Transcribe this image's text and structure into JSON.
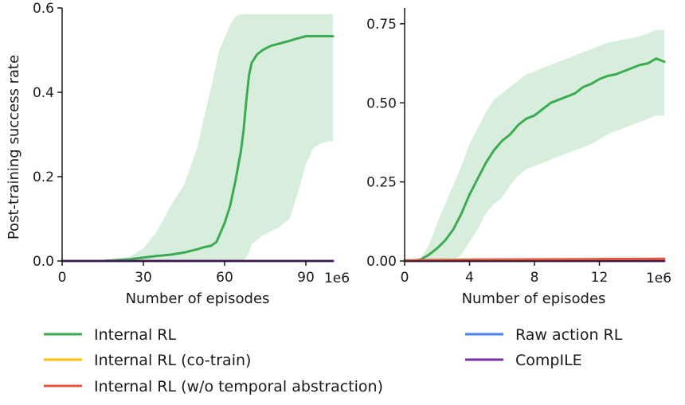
{
  "legend": {
    "items": [
      {
        "label": "Internal RL",
        "color": "#3cab52"
      },
      {
        "label": "Internal RL (co-train)",
        "color": "#ffc107"
      },
      {
        "label": "Internal RL (w/o temporal abstraction)",
        "color": "#e8553e"
      },
      {
        "label": "Raw action RL",
        "color": "#4a86f0"
      },
      {
        "label": "CompILE",
        "color": "#7b2fa6"
      }
    ]
  },
  "chart_data": [
    {
      "type": "line",
      "title": "",
      "xlabel": "Number of episodes",
      "ylabel": "Post-training success rate",
      "x_offset_label": "1e6",
      "xlim": [
        0,
        1.0
      ],
      "ylim": [
        0,
        0.6
      ],
      "xticks": [
        0,
        0.3,
        0.6,
        0.9
      ],
      "xtick_labels": [
        "0",
        "30",
        "60",
        "90"
      ],
      "yticks": [
        0,
        0.2,
        0.4,
        0.6
      ],
      "ytick_labels": [
        "0.0",
        "0.2",
        "0.4",
        "0.6"
      ],
      "grid": false,
      "series": [
        {
          "name": "Internal RL",
          "color": "#3cab52",
          "x": [
            0,
            0.15,
            0.2,
            0.25,
            0.3,
            0.35,
            0.4,
            0.45,
            0.5,
            0.52,
            0.55,
            0.57,
            0.58,
            0.6,
            0.62,
            0.64,
            0.66,
            0.67,
            0.68,
            0.69,
            0.7,
            0.72,
            0.74,
            0.77,
            0.8,
            0.84,
            0.87,
            0.9,
            0.93,
            0.96,
            1.0
          ],
          "values": [
            0,
            0,
            0.002,
            0.004,
            0.008,
            0.012,
            0.015,
            0.02,
            0.028,
            0.032,
            0.036,
            0.045,
            0.06,
            0.09,
            0.13,
            0.19,
            0.26,
            0.31,
            0.38,
            0.44,
            0.47,
            0.49,
            0.5,
            0.51,
            0.515,
            0.522,
            0.528,
            0.533,
            0.533,
            0.533,
            0.533
          ],
          "upper": [
            0,
            0,
            0.004,
            0.01,
            0.03,
            0.07,
            0.13,
            0.18,
            0.27,
            0.33,
            0.41,
            0.47,
            0.5,
            0.53,
            0.56,
            0.58,
            0.585,
            0.585,
            0.585,
            0.585,
            0.585,
            0.585,
            0.585,
            0.585,
            0.585,
            0.585,
            0.585,
            0.585,
            0.585,
            0.585,
            0.585
          ],
          "lower": [
            0,
            0,
            0,
            0,
            0,
            0,
            0,
            0,
            0,
            0,
            0,
            0,
            0,
            0,
            0,
            0,
            0,
            0,
            0.01,
            0.02,
            0.04,
            0.05,
            0.06,
            0.07,
            0.08,
            0.1,
            0.16,
            0.23,
            0.27,
            0.28,
            0.285
          ]
        },
        {
          "name": "Internal RL (co-train)",
          "color": "#ffc107",
          "x": [
            0,
            1.0
          ],
          "values": [
            0,
            0
          ]
        },
        {
          "name": "Internal RL (w/o temporal abstraction)",
          "color": "#e8553e",
          "x": [
            0,
            1.0
          ],
          "values": [
            0,
            0
          ]
        },
        {
          "name": "Raw action RL",
          "color": "#4a86f0",
          "x": [
            0,
            1.0
          ],
          "values": [
            0,
            0
          ]
        },
        {
          "name": "CompILE",
          "color": "#7b2fa6",
          "x": [
            0,
            1.0
          ],
          "values": [
            0,
            0
          ]
        }
      ]
    },
    {
      "type": "line",
      "title": "",
      "xlabel": "Number of episodes",
      "ylabel": "",
      "x_offset_label": "1e6",
      "xlim": [
        0,
        16
      ],
      "ylim": [
        0,
        0.8
      ],
      "xticks": [
        0,
        4,
        8,
        12
      ],
      "xtick_labels": [
        "0",
        "4",
        "8",
        "12"
      ],
      "yticks": [
        0,
        0.25,
        0.5,
        0.75
      ],
      "ytick_labels": [
        "0.00",
        "0.25",
        "0.50",
        "0.75"
      ],
      "grid": false,
      "series": [
        {
          "name": "Internal RL",
          "color": "#3cab52",
          "x": [
            0,
            0.5,
            1,
            1.5,
            2,
            2.5,
            3,
            3.5,
            4,
            4.5,
            5,
            5.5,
            6,
            6.5,
            7,
            7.5,
            8,
            8.5,
            9,
            9.5,
            10,
            10.5,
            11,
            11.5,
            12,
            12.5,
            13,
            13.5,
            14,
            14.5,
            15,
            15.5,
            16
          ],
          "values": [
            0,
            0,
            0.005,
            0.02,
            0.04,
            0.065,
            0.1,
            0.15,
            0.21,
            0.26,
            0.31,
            0.35,
            0.38,
            0.4,
            0.43,
            0.45,
            0.46,
            0.48,
            0.5,
            0.51,
            0.52,
            0.53,
            0.55,
            0.56,
            0.575,
            0.585,
            0.59,
            0.6,
            0.61,
            0.62,
            0.625,
            0.64,
            0.63
          ],
          "upper": [
            0,
            0,
            0.01,
            0.05,
            0.12,
            0.18,
            0.24,
            0.3,
            0.37,
            0.42,
            0.47,
            0.51,
            0.53,
            0.55,
            0.57,
            0.59,
            0.6,
            0.61,
            0.62,
            0.63,
            0.64,
            0.65,
            0.66,
            0.67,
            0.68,
            0.69,
            0.695,
            0.7,
            0.705,
            0.71,
            0.72,
            0.73,
            0.73
          ],
          "lower": [
            0,
            0,
            0,
            0,
            0,
            0,
            0,
            0.02,
            0.06,
            0.1,
            0.15,
            0.18,
            0.2,
            0.24,
            0.27,
            0.29,
            0.3,
            0.31,
            0.32,
            0.33,
            0.34,
            0.35,
            0.36,
            0.37,
            0.385,
            0.4,
            0.41,
            0.42,
            0.43,
            0.44,
            0.45,
            0.46,
            0.46
          ]
        },
        {
          "name": "Internal RL (co-train)",
          "color": "#ffc107",
          "x": [
            0,
            16
          ],
          "values": [
            0,
            0
          ]
        },
        {
          "name": "Raw action RL",
          "color": "#4a86f0",
          "x": [
            0,
            16
          ],
          "values": [
            0,
            0
          ]
        },
        {
          "name": "CompILE",
          "color": "#7b2fa6",
          "x": [
            0,
            16
          ],
          "values": [
            0,
            0
          ]
        },
        {
          "name": "Internal RL (w/o temporal abstraction)",
          "color": "#e8553e",
          "x": [
            0,
            2,
            4,
            8,
            12,
            16
          ],
          "values": [
            0.002,
            0.003,
            0.004,
            0.005,
            0.006,
            0.007
          ]
        }
      ]
    }
  ]
}
